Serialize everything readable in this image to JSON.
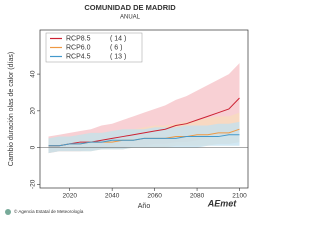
{
  "chart_data": {
    "type": "line",
    "title": "COMUNIDAD DE MADRID",
    "subtitle": "ANUAL",
    "x_label": "Año",
    "y_label": "Cambio duración olas de calor (días)",
    "footer": "© Agencia Estatal de Meteorología",
    "logo": "AEmet",
    "x": [
      2010,
      2015,
      2020,
      2025,
      2030,
      2035,
      2040,
      2045,
      2050,
      2055,
      2060,
      2065,
      2070,
      2075,
      2080,
      2085,
      2090,
      2095,
      2100
    ],
    "xlim": [
      2006,
      2104
    ],
    "xticks": [
      2020,
      2040,
      2060,
      2080,
      2100
    ],
    "ylim": [
      -22,
      64
    ],
    "yticks": [
      -20,
      0,
      20,
      40
    ],
    "series": [
      {
        "name": "RCP8.5",
        "legend_note": "( 14 )",
        "color": "#cc2233",
        "band_color": "#f5c0c6",
        "values": [
          1,
          1,
          2,
          3,
          3,
          4,
          5,
          6,
          7,
          8,
          9,
          10,
          12,
          13,
          15,
          17,
          19,
          21,
          27
        ],
        "upper": [
          6,
          7,
          8,
          9,
          10,
          12,
          13,
          15,
          17,
          19,
          21,
          23,
          26,
          28,
          31,
          34,
          37,
          40,
          46
        ],
        "lower": [
          -3,
          -2,
          -2,
          -2,
          -1,
          -1,
          0,
          0,
          1,
          1,
          2,
          2,
          3,
          3,
          4,
          5,
          6,
          7,
          9
        ]
      },
      {
        "name": "RCP6.0",
        "legend_note": "(  6 )",
        "color": "#ee9944",
        "band_color": "#f8dcbc",
        "values": [
          1,
          1,
          2,
          2,
          3,
          3,
          3,
          4,
          4,
          5,
          5,
          5,
          6,
          6,
          7,
          7,
          8,
          8,
          10
        ],
        "upper": [
          5,
          6,
          6,
          7,
          8,
          8,
          9,
          10,
          10,
          11,
          12,
          12,
          13,
          14,
          15,
          16,
          17,
          17,
          19
        ],
        "lower": [
          -3,
          -2,
          -2,
          -2,
          -2,
          -1,
          -1,
          -1,
          0,
          0,
          0,
          0,
          1,
          1,
          1,
          1,
          2,
          2,
          3
        ]
      },
      {
        "name": "RCP4.5",
        "legend_note": "( 13 )",
        "color": "#4499cc",
        "band_color": "#c2e0f0",
        "values": [
          1,
          1,
          2,
          2,
          3,
          3,
          4,
          4,
          4,
          5,
          5,
          5,
          5,
          6,
          6,
          6,
          6,
          7,
          7
        ],
        "upper": [
          5,
          6,
          6,
          7,
          8,
          8,
          9,
          10,
          10,
          10,
          11,
          11,
          11,
          12,
          12,
          12,
          13,
          13,
          14
        ],
        "lower": [
          -3,
          -2,
          -2,
          -2,
          -2,
          -1,
          -1,
          -1,
          0,
          0,
          0,
          0,
          0,
          0,
          0,
          1,
          1,
          1,
          1
        ]
      }
    ]
  }
}
